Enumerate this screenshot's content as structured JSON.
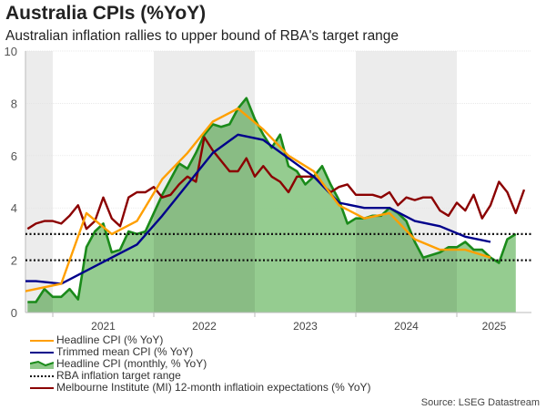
{
  "title": "Australia CPIs (%YoY)",
  "subtitle": "Australian inflation rallies to upper bound of RBA's target range",
  "source": "Source: LSEG Datastream",
  "colors": {
    "headline": "#ff9f00",
    "trimmed": "#00008b",
    "monthly_line": "#1a8a1a",
    "monthly_fill": "#8fc98a",
    "rba": "#111111",
    "mi": "#8b0000",
    "band": "#ececec"
  },
  "chart_data": {
    "type": "line",
    "ylim": [
      0,
      10
    ],
    "yticks": [
      "0",
      "2",
      "4",
      "6",
      "8",
      "10"
    ],
    "xticks": [
      "2021",
      "2022",
      "2023",
      "2024",
      "2025"
    ],
    "grid": true,
    "legend_placement": "bottom-left",
    "shaded_years": [
      "2020",
      "2022",
      "2024"
    ],
    "series": [
      {
        "name": "Headline CPI (% YoY)",
        "key": "headline",
        "frequency": "quarterly",
        "dates": [
          "2020-09",
          "2020-12",
          "2021-03",
          "2021-06",
          "2021-09",
          "2021-12",
          "2022-03",
          "2022-06",
          "2022-09",
          "2022-12",
          "2023-03",
          "2023-06",
          "2023-09",
          "2023-12",
          "2024-03",
          "2024-06",
          "2024-09",
          "2024-12",
          "2025-03",
          "2025-06"
        ],
        "values": [
          0.7,
          0.9,
          1.1,
          3.8,
          3.0,
          3.5,
          5.1,
          6.1,
          7.3,
          7.8,
          7.0,
          6.0,
          5.4,
          4.1,
          3.6,
          3.8,
          2.8,
          2.4,
          2.4,
          2.1
        ]
      },
      {
        "name": "Trimmed mean CPI (% YoY)",
        "key": "trimmed",
        "frequency": "quarterly",
        "dates": [
          "2020-06",
          "2020-09",
          "2020-12",
          "2021-03",
          "2021-06",
          "2021-09",
          "2021-12",
          "2022-03",
          "2022-06",
          "2022-09",
          "2022-12",
          "2023-03",
          "2023-06",
          "2023-09",
          "2023-12",
          "2024-03",
          "2024-06",
          "2024-09",
          "2024-12",
          "2025-03",
          "2025-06"
        ],
        "values": [
          1.2,
          1.2,
          1.2,
          1.1,
          1.6,
          2.1,
          2.6,
          3.7,
          4.9,
          6.1,
          6.8,
          6.6,
          5.9,
          5.2,
          4.2,
          4.0,
          4.0,
          3.5,
          3.3,
          2.9,
          2.7
        ]
      },
      {
        "name": "Headline CPI (monthly, % YoY)",
        "key": "monthly",
        "frequency": "monthly",
        "start": "2020-10",
        "values": [
          0.4,
          0.4,
          0.9,
          0.6,
          0.6,
          0.9,
          0.5,
          2.5,
          3.1,
          3.4,
          2.3,
          2.4,
          3.1,
          3.0,
          3.1,
          3.8,
          4.5,
          5.1,
          5.7,
          5.5,
          6.1,
          6.8,
          7.2,
          7.1,
          7.2,
          7.8,
          8.2,
          7.4,
          6.8,
          6.3,
          6.8,
          5.6,
          5.4,
          4.9,
          5.2,
          5.6,
          4.9,
          4.3,
          3.4,
          3.6,
          3.6,
          3.7,
          3.7,
          4.0,
          3.8,
          3.5,
          2.7,
          2.1,
          2.2,
          2.3,
          2.5,
          2.5,
          2.7,
          2.4,
          2.4,
          2.1,
          1.9,
          2.8,
          3.0
        ]
      },
      {
        "name": "RBA inflation target range",
        "key": "rba",
        "values": [
          2,
          3
        ]
      },
      {
        "name": "Melbourne Institute (MI) 12-month inflatioin expectations (% YoY)",
        "key": "mi",
        "frequency": "monthly",
        "start": "2020-10",
        "values": [
          3.2,
          3.4,
          3.5,
          3.5,
          3.4,
          3.7,
          4.1,
          3.2,
          3.5,
          4.4,
          3.6,
          3.3,
          4.4,
          4.6,
          4.6,
          4.8,
          4.4,
          4.5,
          4.9,
          5.2,
          5.0,
          6.7,
          6.2,
          5.8,
          5.4,
          5.4,
          5.9,
          5.2,
          5.6,
          5.2,
          5.0,
          4.6,
          5.2,
          5.2,
          5.2,
          4.9,
          4.6,
          4.8,
          4.9,
          4.5,
          4.5,
          4.5,
          4.4,
          4.6,
          4.1,
          4.4,
          4.3,
          4.4,
          4.4,
          3.9,
          3.7,
          4.2,
          3.9,
          4.5,
          3.6,
          4.1,
          5.0,
          4.6,
          3.8,
          4.7
        ]
      }
    ]
  }
}
